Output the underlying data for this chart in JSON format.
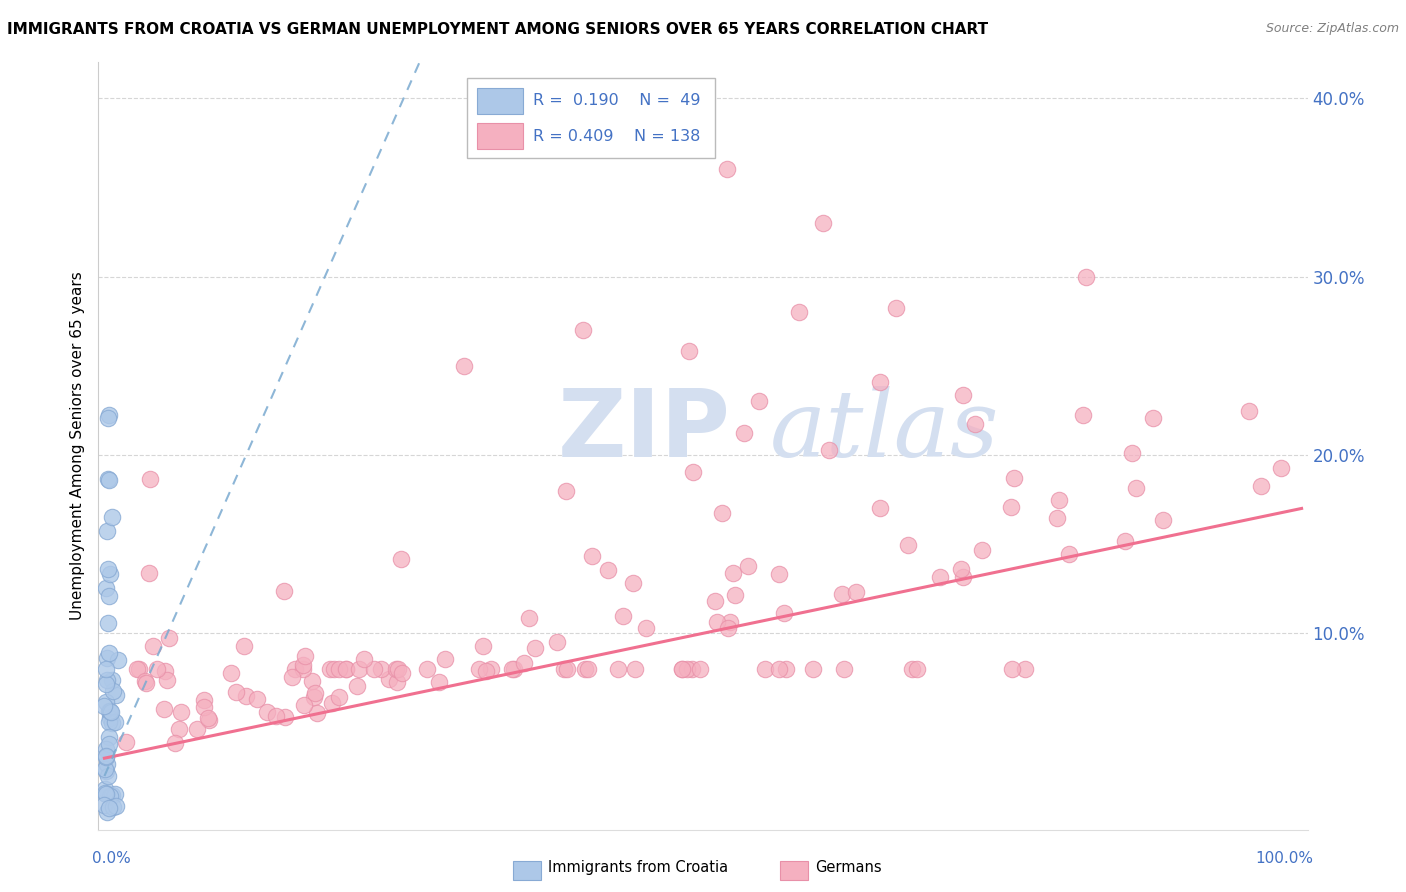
{
  "title": "IMMIGRANTS FROM CROATIA VS GERMAN UNEMPLOYMENT AMONG SENIORS OVER 65 YEARS CORRELATION CHART",
  "source": "Source: ZipAtlas.com",
  "ylabel": "Unemployment Among Seniors over 65 years",
  "ytick_vals": [
    0.1,
    0.2,
    0.3,
    0.4
  ],
  "ytick_labels": [
    "10.0%",
    "20.0%",
    "30.0%",
    "40.0%"
  ],
  "legend_r1": "0.190",
  "legend_n1": "49",
  "legend_r2": "0.409",
  "legend_n2": "138",
  "color_croatia": "#adc8e8",
  "color_german": "#f5b0c0",
  "color_croatia_edge": "#88aad4",
  "color_german_edge": "#e890a8",
  "trendline_croatia_color": "#7aaad0",
  "trendline_german_color": "#f07090",
  "watermark_zip": "ZIP",
  "watermark_atlas": "atlas",
  "watermark_color": "#d4dff0",
  "label_color": "#4472c4",
  "title_fontsize": 11,
  "source_fontsize": 9,
  "tick_fontsize": 12
}
